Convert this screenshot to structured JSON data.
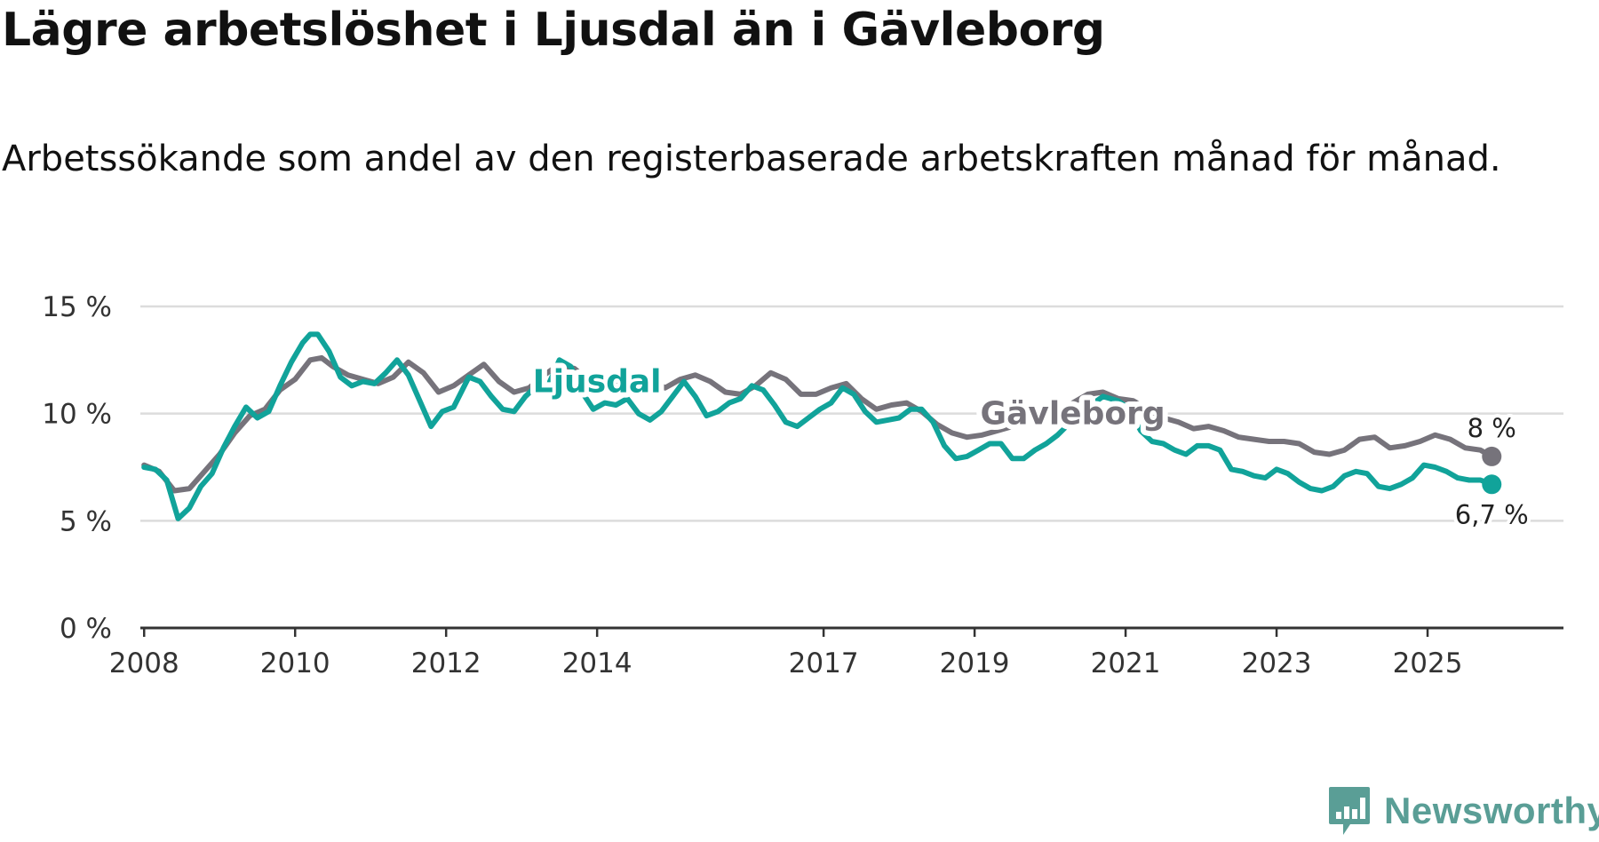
{
  "title": "Lägre arbetslöshet i Ljusdal än i Gävleborg",
  "subtitle": "Arbetssökande som andel av den registerbaserade arbetskraften månad för månad.",
  "brand": "Newsworthy",
  "colors": {
    "ljusdal": "#11a39a",
    "gavleborg": "#76737b",
    "grid": "#dcdcdc",
    "axis": "#333333",
    "brand": "#5a9e96"
  },
  "chart_data": {
    "type": "line",
    "title": "Lägre arbetslöshet i Ljusdal än i Gävleborg",
    "xlabel": "",
    "ylabel": "",
    "xlim": [
      2007.95,
      2026.8
    ],
    "ylim": [
      0,
      15
    ],
    "grid": true,
    "yticks": [
      {
        "value": 0,
        "label": "0 %"
      },
      {
        "value": 5,
        "label": "5 %"
      },
      {
        "value": 10,
        "label": "10 %"
      },
      {
        "value": 15,
        "label": "15 %"
      }
    ],
    "xticks": [
      {
        "value": 2008.0,
        "label": "2008"
      },
      {
        "value": 2010.0,
        "label": "2010"
      },
      {
        "value": 2012.0,
        "label": "2012"
      },
      {
        "value": 2014.0,
        "label": "2014"
      },
      {
        "value": 2017.0,
        "label": "2017"
      },
      {
        "value": 2019.0,
        "label": "2019"
      },
      {
        "value": 2021.0,
        "label": "2021"
      },
      {
        "value": 2023.0,
        "label": "2023"
      },
      {
        "value": 2025.0,
        "label": "2025"
      }
    ],
    "series": [
      {
        "name": "Gävleborg",
        "color": "#76737b",
        "end_label": "8 %",
        "points": [
          [
            2008.0,
            7.6
          ],
          [
            2008.2,
            7.3
          ],
          [
            2008.4,
            6.4
          ],
          [
            2008.6,
            6.5
          ],
          [
            2008.8,
            7.3
          ],
          [
            2009.0,
            8.1
          ],
          [
            2009.2,
            9.1
          ],
          [
            2009.4,
            9.9
          ],
          [
            2009.6,
            10.2
          ],
          [
            2009.8,
            11.1
          ],
          [
            2010.0,
            11.6
          ],
          [
            2010.2,
            12.5
          ],
          [
            2010.35,
            12.6
          ],
          [
            2010.5,
            12.2
          ],
          [
            2010.7,
            11.8
          ],
          [
            2010.9,
            11.6
          ],
          [
            2011.1,
            11.4
          ],
          [
            2011.3,
            11.7
          ],
          [
            2011.5,
            12.4
          ],
          [
            2011.7,
            11.9
          ],
          [
            2011.9,
            11.0
          ],
          [
            2012.1,
            11.3
          ],
          [
            2012.3,
            11.8
          ],
          [
            2012.5,
            12.3
          ],
          [
            2012.7,
            11.5
          ],
          [
            2012.9,
            11.0
          ],
          [
            2013.1,
            11.2
          ],
          [
            2013.3,
            11.8
          ],
          [
            2013.5,
            12.3
          ],
          [
            2013.7,
            12.1
          ],
          [
            2013.9,
            11.5
          ],
          [
            2014.1,
            11.1
          ],
          [
            2014.3,
            11.4
          ],
          [
            2014.5,
            11.9
          ],
          [
            2014.7,
            11.6
          ],
          [
            2014.9,
            11.2
          ],
          [
            2015.1,
            11.6
          ],
          [
            2015.3,
            11.8
          ],
          [
            2015.5,
            11.5
          ],
          [
            2015.7,
            11.0
          ],
          [
            2015.9,
            10.9
          ],
          [
            2016.1,
            11.3
          ],
          [
            2016.3,
            11.9
          ],
          [
            2016.5,
            11.6
          ],
          [
            2016.7,
            10.9
          ],
          [
            2016.9,
            10.9
          ],
          [
            2017.1,
            11.2
          ],
          [
            2017.3,
            11.4
          ],
          [
            2017.5,
            10.7
          ],
          [
            2017.7,
            10.2
          ],
          [
            2017.9,
            10.4
          ],
          [
            2018.1,
            10.5
          ],
          [
            2018.3,
            10.1
          ],
          [
            2018.5,
            9.5
          ],
          [
            2018.7,
            9.1
          ],
          [
            2018.9,
            8.9
          ],
          [
            2019.1,
            9.0
          ],
          [
            2019.3,
            9.2
          ],
          [
            2019.5,
            9.4
          ],
          [
            2019.7,
            9.5
          ],
          [
            2019.9,
            9.7
          ],
          [
            2020.1,
            10.0
          ],
          [
            2020.3,
            10.5
          ],
          [
            2020.5,
            10.9
          ],
          [
            2020.7,
            11.0
          ],
          [
            2020.9,
            10.7
          ],
          [
            2021.1,
            10.6
          ],
          [
            2021.3,
            10.2
          ],
          [
            2021.5,
            9.8
          ],
          [
            2021.7,
            9.6
          ],
          [
            2021.9,
            9.3
          ],
          [
            2022.1,
            9.4
          ],
          [
            2022.3,
            9.2
          ],
          [
            2022.5,
            8.9
          ],
          [
            2022.7,
            8.8
          ],
          [
            2022.9,
            8.7
          ],
          [
            2023.1,
            8.7
          ],
          [
            2023.3,
            8.6
          ],
          [
            2023.5,
            8.2
          ],
          [
            2023.7,
            8.1
          ],
          [
            2023.9,
            8.3
          ],
          [
            2024.1,
            8.8
          ],
          [
            2024.3,
            8.9
          ],
          [
            2024.5,
            8.4
          ],
          [
            2024.7,
            8.5
          ],
          [
            2024.9,
            8.7
          ],
          [
            2025.1,
            9.0
          ],
          [
            2025.3,
            8.8
          ],
          [
            2025.5,
            8.4
          ],
          [
            2025.7,
            8.3
          ],
          [
            2025.85,
            8.0
          ]
        ]
      },
      {
        "name": "Ljusdal",
        "color": "#11a39a",
        "end_label": "6,7 %",
        "points": [
          [
            2008.0,
            7.5
          ],
          [
            2008.15,
            7.4
          ],
          [
            2008.3,
            6.9
          ],
          [
            2008.45,
            5.1
          ],
          [
            2008.6,
            5.6
          ],
          [
            2008.75,
            6.6
          ],
          [
            2008.9,
            7.2
          ],
          [
            2009.05,
            8.4
          ],
          [
            2009.2,
            9.4
          ],
          [
            2009.35,
            10.3
          ],
          [
            2009.5,
            9.8
          ],
          [
            2009.65,
            10.1
          ],
          [
            2009.8,
            11.3
          ],
          [
            2009.95,
            12.4
          ],
          [
            2010.1,
            13.3
          ],
          [
            2010.2,
            13.7
          ],
          [
            2010.3,
            13.7
          ],
          [
            2010.45,
            12.9
          ],
          [
            2010.6,
            11.7
          ],
          [
            2010.75,
            11.3
          ],
          [
            2010.9,
            11.5
          ],
          [
            2011.05,
            11.4
          ],
          [
            2011.2,
            11.9
          ],
          [
            2011.35,
            12.5
          ],
          [
            2011.5,
            11.8
          ],
          [
            2011.65,
            10.6
          ],
          [
            2011.8,
            9.4
          ],
          [
            2011.95,
            10.1
          ],
          [
            2012.1,
            10.3
          ],
          [
            2012.3,
            11.7
          ],
          [
            2012.45,
            11.5
          ],
          [
            2012.6,
            10.8
          ],
          [
            2012.75,
            10.2
          ],
          [
            2012.9,
            10.1
          ],
          [
            2013.05,
            10.8
          ],
          [
            2013.2,
            11.3
          ],
          [
            2013.35,
            11.3
          ],
          [
            2013.5,
            12.5
          ],
          [
            2013.65,
            12.2
          ],
          [
            2013.8,
            11.0
          ],
          [
            2013.95,
            10.2
          ],
          [
            2014.1,
            10.5
          ],
          [
            2014.25,
            10.4
          ],
          [
            2014.4,
            10.7
          ],
          [
            2014.55,
            10.0
          ],
          [
            2014.7,
            9.7
          ],
          [
            2014.85,
            10.1
          ],
          [
            2015.0,
            10.8
          ],
          [
            2015.15,
            11.5
          ],
          [
            2015.3,
            10.8
          ],
          [
            2015.45,
            9.9
          ],
          [
            2015.6,
            10.1
          ],
          [
            2015.75,
            10.5
          ],
          [
            2015.9,
            10.7
          ],
          [
            2016.05,
            11.3
          ],
          [
            2016.2,
            11.1
          ],
          [
            2016.35,
            10.4
          ],
          [
            2016.5,
            9.6
          ],
          [
            2016.65,
            9.4
          ],
          [
            2016.8,
            9.8
          ],
          [
            2016.95,
            10.2
          ],
          [
            2017.1,
            10.5
          ],
          [
            2017.25,
            11.2
          ],
          [
            2017.4,
            10.9
          ],
          [
            2017.55,
            10.1
          ],
          [
            2017.7,
            9.6
          ],
          [
            2017.85,
            9.7
          ],
          [
            2018.0,
            9.8
          ],
          [
            2018.15,
            10.2
          ],
          [
            2018.3,
            10.2
          ],
          [
            2018.45,
            9.6
          ],
          [
            2018.6,
            8.5
          ],
          [
            2018.75,
            7.9
          ],
          [
            2018.9,
            8.0
          ],
          [
            2019.05,
            8.3
          ],
          [
            2019.2,
            8.6
          ],
          [
            2019.35,
            8.6
          ],
          [
            2019.5,
            7.9
          ],
          [
            2019.65,
            7.9
          ],
          [
            2019.8,
            8.3
          ],
          [
            2019.95,
            8.6
          ],
          [
            2020.1,
            9.0
          ],
          [
            2020.3,
            9.7
          ],
          [
            2020.5,
            10.3
          ],
          [
            2020.7,
            10.8
          ],
          [
            2020.9,
            10.6
          ],
          [
            2021.05,
            10.2
          ],
          [
            2021.2,
            9.2
          ],
          [
            2021.35,
            8.7
          ],
          [
            2021.5,
            8.6
          ],
          [
            2021.65,
            8.3
          ],
          [
            2021.8,
            8.1
          ],
          [
            2021.95,
            8.5
          ],
          [
            2022.1,
            8.5
          ],
          [
            2022.25,
            8.3
          ],
          [
            2022.4,
            7.4
          ],
          [
            2022.55,
            7.3
          ],
          [
            2022.7,
            7.1
          ],
          [
            2022.85,
            7.0
          ],
          [
            2023.0,
            7.4
          ],
          [
            2023.15,
            7.2
          ],
          [
            2023.3,
            6.8
          ],
          [
            2023.45,
            6.5
          ],
          [
            2023.6,
            6.4
          ],
          [
            2023.75,
            6.6
          ],
          [
            2023.9,
            7.1
          ],
          [
            2024.05,
            7.3
          ],
          [
            2024.2,
            7.2
          ],
          [
            2024.35,
            6.6
          ],
          [
            2024.5,
            6.5
          ],
          [
            2024.65,
            6.7
          ],
          [
            2024.8,
            7.0
          ],
          [
            2024.95,
            7.6
          ],
          [
            2025.1,
            7.5
          ],
          [
            2025.25,
            7.3
          ],
          [
            2025.4,
            7.0
          ],
          [
            2025.55,
            6.9
          ],
          [
            2025.7,
            6.9
          ],
          [
            2025.85,
            6.7
          ]
        ]
      }
    ],
    "annotations": [
      {
        "text": "Ljusdal",
        "series": "Ljusdal",
        "x": 2014.0,
        "y": 11.5
      },
      {
        "text": "Gävleborg",
        "series": "Gävleborg",
        "x": 2020.3,
        "y": 10.0
      }
    ]
  }
}
